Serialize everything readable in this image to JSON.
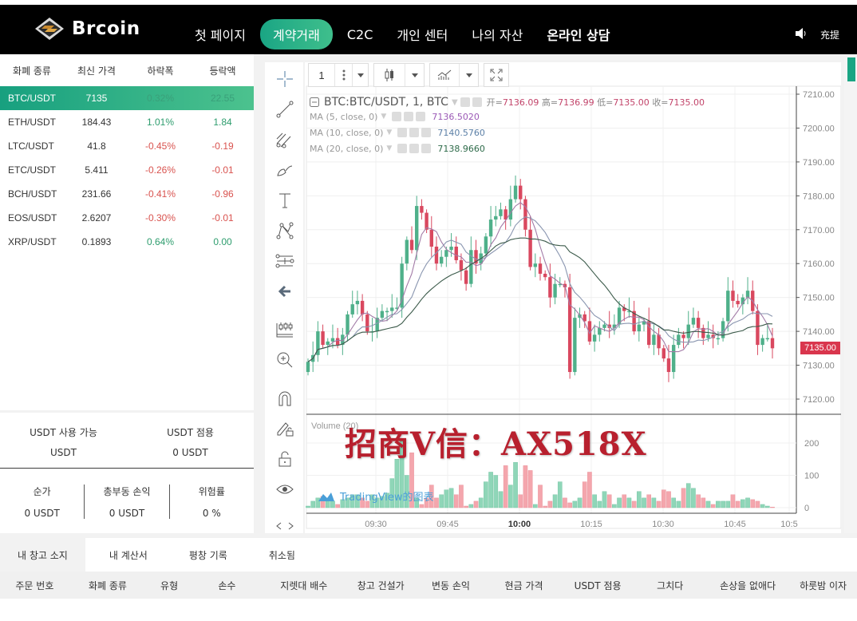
{
  "header": {
    "brand": "Brcoin",
    "nav": [
      {
        "label": "첫 페이지",
        "active": false,
        "bold": false
      },
      {
        "label": "계약거래",
        "active": true,
        "bold": false
      },
      {
        "label": "C2C",
        "active": false,
        "bold": false
      },
      {
        "label": "개인 센터",
        "active": false,
        "bold": false
      },
      {
        "label": "나의 자산",
        "active": false,
        "bold": false
      },
      {
        "label": "온라인 상담",
        "active": false,
        "bold": true
      }
    ],
    "lang_label": "充提",
    "accent_color": "#1aa584"
  },
  "market": {
    "headers": [
      "화폐 종류",
      "최신 가격",
      "하락폭",
      "등락액"
    ],
    "rows": [
      {
        "pair": "BTC/USDT",
        "price": "7135",
        "change_pct": "0.32%",
        "change_amt": "22.55",
        "dir": "up",
        "active": true
      },
      {
        "pair": "ETH/USDT",
        "price": "184.43",
        "change_pct": "1.01%",
        "change_amt": "1.84",
        "dir": "up",
        "active": false
      },
      {
        "pair": "LTC/USDT",
        "price": "41.8",
        "change_pct": "-0.45%",
        "change_amt": "-0.19",
        "dir": "down",
        "active": false
      },
      {
        "pair": "ETC/USDT",
        "price": "5.411",
        "change_pct": "-0.26%",
        "change_amt": "-0.01",
        "dir": "down",
        "active": false
      },
      {
        "pair": "BCH/USDT",
        "price": "231.66",
        "change_pct": "-0.41%",
        "change_amt": "-0.96",
        "dir": "down",
        "active": false
      },
      {
        "pair": "EOS/USDT",
        "price": "2.6207",
        "change_pct": "-0.30%",
        "change_amt": "-0.01",
        "dir": "down",
        "active": false
      },
      {
        "pair": "XRP/USDT",
        "price": "0.1893",
        "change_pct": "0.64%",
        "change_amt": "0.00",
        "dir": "up",
        "active": false
      }
    ]
  },
  "account": {
    "available_label": "USDT 사용 가능",
    "available_value": "USDT",
    "occupied_label": "USDT 점용",
    "occupied_value": "0 USDT",
    "net_label": "순가",
    "net_value": "0 USDT",
    "floating_label": "총부동 손익",
    "floating_value": "0 USDT",
    "risk_label": "위험률",
    "risk_value": "0 %"
  },
  "chart": {
    "interval": "1",
    "symbol_title": "BTC:BTC/USDT, 1, BTC",
    "ohlc": {
      "open_label": "开=",
      "open": "7136.09",
      "high_label": "高=",
      "high": "7136.99",
      "low_label": "低=",
      "low": "7135.00",
      "close_label": "收=",
      "close": "7135.00"
    },
    "ma": [
      {
        "label": "MA (5, close, 0)",
        "value": "7136.5020",
        "color": "#9b59b6"
      },
      {
        "label": "MA (10, close, 0)",
        "value": "7140.5760",
        "color": "#5b7fa6"
      },
      {
        "label": "MA (20, close, 0)",
        "value": "7138.9660",
        "color": "#2e6b4a"
      }
    ],
    "last_price_tag": "7135.00",
    "volume_label": "Volume (20)",
    "watermark": "招商V信：AX518X",
    "tv_attribution": "TradingView的图表"
  },
  "chart_data": {
    "type": "candlestick",
    "title": "BTC:BTC/USDT, 1, BTC",
    "y_ticks": [
      "7210.00",
      "7200.00",
      "7190.00",
      "7180.00",
      "7170.00",
      "7160.00",
      "7150.00",
      "7140.00",
      "7130.00",
      "7120.00"
    ],
    "ylim": [
      7118,
      7212
    ],
    "x_ticks": [
      "09:30",
      "09:45",
      "10:00",
      "10:15",
      "10:30",
      "10:45",
      "10:5"
    ],
    "volume_ticks": [
      "200",
      "100",
      "0"
    ],
    "close_series": [
      7131,
      7133,
      7140,
      7136,
      7137,
      7138,
      7136,
      7139,
      7145,
      7148,
      7149,
      7145,
      7140,
      7140,
      7144,
      7146,
      7146,
      7147,
      7147,
      7160,
      7167,
      7164,
      7177,
      7175,
      7170,
      7165,
      7160,
      7162,
      7164,
      7165,
      7161,
      7158,
      7154,
      7164,
      7160,
      7163,
      7168,
      7173,
      7174,
      7176,
      7173,
      7179,
      7183,
      7179,
      7170,
      7159,
      7160,
      7157,
      7156,
      7150,
      7154,
      7154,
      7153,
      7128,
      7144,
      7145,
      7143,
      7137,
      7139,
      7141,
      7142,
      7141,
      7142,
      7147,
      7146,
      7146,
      7140,
      7142,
      7143,
      7136,
      7139,
      7135,
      7132,
      7128,
      7136,
      7139,
      7138,
      7142,
      7144,
      7141,
      7138,
      7139,
      7138,
      7138,
      7143,
      7152,
      7149,
      7148,
      7150,
      7152,
      7146,
      7136,
      7138,
      7138,
      7135
    ],
    "volume_series": [
      5,
      20,
      30,
      35,
      20,
      20,
      10,
      25,
      30,
      40,
      40,
      30,
      20,
      40,
      30,
      35,
      45,
      90,
      150,
      210,
      100,
      170,
      30,
      10,
      30,
      70,
      30,
      40,
      55,
      60,
      40,
      70,
      5,
      10,
      20,
      30,
      80,
      110,
      100,
      50,
      130,
      70,
      140,
      40,
      130,
      115,
      10,
      70,
      5,
      20,
      40,
      80,
      30,
      15,
      20,
      30,
      80,
      110,
      40,
      20,
      50,
      40,
      10,
      30,
      40,
      30,
      20,
      50,
      30,
      40,
      30,
      20,
      55,
      50,
      30,
      20,
      60,
      75,
      60,
      40,
      30,
      20,
      10,
      20,
      20,
      20,
      40,
      20,
      25,
      30,
      25,
      20,
      10,
      5,
      2
    ],
    "series": [
      {
        "name": "MA 5",
        "last": 7136.502
      },
      {
        "name": "MA 10",
        "last": 7140.576
      },
      {
        "name": "MA 20",
        "last": 7138.966
      }
    ]
  },
  "bottom": {
    "tabs": [
      {
        "label": "내 창고 소지",
        "active": true
      },
      {
        "label": "내 계산서",
        "active": false
      },
      {
        "label": "평창 기록",
        "active": false
      },
      {
        "label": "취소됨",
        "active": false
      }
    ],
    "columns": [
      "주문 번호",
      "화폐 종류",
      "유형",
      "손수",
      "지렛대 배수",
      "창고 건설가",
      "변동 손익",
      "현금 가격",
      "USDT 점용",
      "그치다",
      "손상을 없애다",
      "하룻밤 이자"
    ]
  }
}
